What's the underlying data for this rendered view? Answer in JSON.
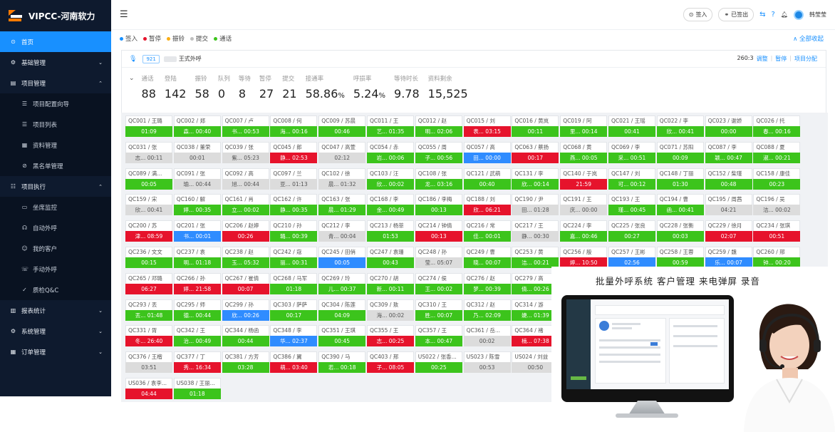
{
  "brand": "VIPCC-河南软力",
  "nav": [
    {
      "label": "首页",
      "icon": "home-icon",
      "active": true
    },
    {
      "label": "基础管理",
      "icon": "gear-icon",
      "chev": "⌄"
    },
    {
      "label": "项目管理",
      "icon": "briefcase-icon",
      "chev": "⌃"
    },
    {
      "label": "项目配置向导",
      "icon": "list-icon",
      "sub": true
    },
    {
      "label": "项目列表",
      "icon": "list-icon",
      "sub": true
    },
    {
      "label": "资料管理",
      "icon": "document-icon",
      "sub": true
    },
    {
      "label": "黑名单管理",
      "icon": "block-icon",
      "sub": true
    },
    {
      "label": "项目执行",
      "icon": "run-icon",
      "chev": "⌃"
    },
    {
      "label": "坐席监控",
      "icon": "monitor-icon",
      "sub": true
    },
    {
      "label": "自动外呼",
      "icon": "headset-icon",
      "sub": true
    },
    {
      "label": "我的客户",
      "icon": "users-icon",
      "sub": true
    },
    {
      "label": "手动外呼",
      "icon": "phone-icon",
      "sub": true
    },
    {
      "label": "质检Q&C",
      "icon": "check-icon",
      "sub": true
    },
    {
      "label": "报表统计",
      "icon": "chart-icon",
      "chev": "⌄"
    },
    {
      "label": "系统管理",
      "icon": "settings-icon",
      "chev": "⌄"
    },
    {
      "label": "订单管理",
      "icon": "order-icon",
      "chev": "⌄"
    }
  ],
  "topbar": {
    "signin": "签入",
    "signout": "已签出",
    "user": "韩莹莹"
  },
  "legend": [
    {
      "label": "签入",
      "color": "#1890ff"
    },
    {
      "label": "暂停",
      "color": "#e6132c"
    },
    {
      "label": "振铃",
      "color": "#faad14"
    },
    {
      "label": "提交",
      "color": "#bfbfbf"
    },
    {
      "label": "通话",
      "color": "#3cc41c"
    }
  ],
  "collapse_all": "∧ 全部收起",
  "panel": {
    "badge": "921",
    "project": "王式外呼",
    "code": "260:3",
    "actions": [
      "调整",
      "暂停",
      "项目分配"
    ],
    "stats": [
      {
        "label": "通话",
        "value": "88",
        "suffix": ""
      },
      {
        "label": "登陆",
        "value": "142",
        "suffix": ""
      },
      {
        "label": "振铃",
        "value": "58",
        "suffix": ""
      },
      {
        "label": "队列",
        "value": "0",
        "suffix": ""
      },
      {
        "label": "等待",
        "value": "8",
        "suffix": ""
      },
      {
        "label": "暂停",
        "value": "27",
        "suffix": ""
      },
      {
        "label": "提交",
        "value": "21",
        "suffix": ""
      },
      {
        "label": "接通率",
        "value": "58.86",
        "suffix": "%"
      },
      {
        "label": "呼损率",
        "value": "5.24",
        "suffix": "%"
      },
      {
        "label": "等待时长",
        "value": "9.78",
        "suffix": ""
      },
      {
        "label": "资料剩余",
        "value": "15,525",
        "suffix": ""
      }
    ]
  },
  "agents": [
    [
      "QC001 / 王璐",
      "01:09",
      "g"
    ],
    [
      "QC002 / 郑",
      "森... 00:40",
      "g"
    ],
    [
      "QC007 / 卢",
      "书... 00:53",
      "g"
    ],
    [
      "QC008 / 何",
      "海... 00:16",
      "g"
    ],
    [
      "QC009 / 苏晨",
      "00:46",
      "g"
    ],
    [
      "QC011 / 王",
      "艺... 01:35",
      "g"
    ],
    [
      "QC012 / 赵",
      "明... 02:06",
      "g"
    ],
    [
      "QC015 / 刘",
      "表... 03:15",
      "r"
    ],
    [
      "QC016 / 黄岚",
      "00:11",
      "g"
    ],
    [
      "QC019 / 阿",
      "里... 00:14",
      "g"
    ],
    [
      "QC021 / 王瑶",
      "00:41",
      "g"
    ],
    [
      "QC022 / 李",
      "欣... 00:41",
      "g"
    ],
    [
      "QC023 / 谢娇",
      "00:00",
      "g"
    ],
    [
      "QC026 / 托",
      "春... 00:16",
      "g"
    ],
    [
      "QC031 / 张",
      "志... 00:11",
      "y"
    ],
    [
      "QC038 / 董荣",
      "00:01",
      "y"
    ],
    [
      "QC039 / 张",
      "紫... 05:23",
      "y"
    ],
    [
      "QC045 / 郎",
      "静... 02:53",
      "r"
    ],
    [
      "QC047 / 高萱",
      "02:12",
      "y"
    ],
    [
      "QC054 / 赤",
      "岩... 00:06",
      "g"
    ],
    [
      "QC055 / 周",
      "子... 00:56",
      "g"
    ],
    [
      "QC057 / 高",
      "田... 00:00",
      "b"
    ],
    [
      "QC063 / 蔡扬",
      "00:17",
      "r"
    ],
    [
      "QC068 / 黄",
      "燕... 00:05",
      "g"
    ],
    [
      "QC069 / 李",
      "采... 00:51",
      "g"
    ],
    [
      "QC071 / 苏阳",
      "00:09",
      "g"
    ],
    [
      "QC087 / 李",
      "颖... 00:47",
      "g"
    ],
    [
      "QC088 / 夏",
      "淑... 00:21",
      "g"
    ],
    [
      "QC089 / 满...",
      "00:05",
      "g"
    ],
    [
      "QC091 / 张",
      "瑜... 00:44",
      "y"
    ],
    [
      "QC092 / 高",
      "旭... 00:44",
      "y"
    ],
    [
      "QC097 / 兰",
      "亚... 01:13",
      "y"
    ],
    [
      "QC102 / 徐",
      "晨... 01:32",
      "y"
    ],
    [
      "QC103 / 汪",
      "欣... 00:02",
      "g"
    ],
    [
      "QC108 / 张",
      "龙... 03:16",
      "g"
    ],
    [
      "QC121 / 武萌",
      "00:40",
      "g"
    ],
    [
      "QC131 / 李",
      "欣... 00:14",
      "g"
    ],
    [
      "QC140 / 于岚",
      "21:59",
      "r"
    ],
    [
      "QC147 / 刘",
      "可... 00:12",
      "g"
    ],
    [
      "QC148 / 丁丽",
      "01:30",
      "g"
    ],
    [
      "QC152 / 柴瑾",
      "00:48",
      "g"
    ],
    [
      "QC158 / 康佳",
      "00:23",
      "g"
    ],
    [
      "QC159 / 宋",
      "欣... 00:41",
      "y"
    ],
    [
      "QC160 / 解",
      "婷... 00:35",
      "g"
    ],
    [
      "QC161 / 肖",
      "立... 00:02",
      "g"
    ],
    [
      "QC162 / 许",
      "静... 00:35",
      "g"
    ],
    [
      "QC163 / 张",
      "晨... 01:29",
      "g"
    ],
    [
      "QC168 / 李",
      "金... 00:49",
      "g"
    ],
    [
      "QC186 / 李梅",
      "00:13",
      "g"
    ],
    [
      "QC188 / 刘",
      "欣... 06:21",
      "r"
    ],
    [
      "QC190 / 尹",
      "田... 01:28",
      "y"
    ],
    [
      "QC191 / 王",
      "庆... 00:00",
      "y"
    ],
    [
      "QC193 / 王",
      "瑾... 00:45",
      "g"
    ],
    [
      "QC194 / 曹",
      "函... 00:41",
      "g"
    ],
    [
      "QC195 / 周茜",
      "04:21",
      "y"
    ],
    [
      "QC196 / 吴",
      "洁... 00:02",
      "y"
    ],
    [
      "QC200 / 苏",
      "津... 08:59",
      "r"
    ],
    [
      "QC201 / 张",
      "书... 00:01",
      "b"
    ],
    [
      "QC206 / 赵婷",
      "00:26",
      "r"
    ],
    [
      "QC210 / 孙",
      "璐... 00:39",
      "g"
    ],
    [
      "QC212 / 李",
      "青... 00:04",
      "y"
    ],
    [
      "QC213 / 杨菲",
      "01:53",
      "g"
    ],
    [
      "QC214 / 钟倩",
      "00:13",
      "r"
    ],
    [
      "QC216 / 常",
      "佳... 00:01",
      "g"
    ],
    [
      "QC217 / 王",
      "静... 00:30",
      "y"
    ],
    [
      "QC224 / 李",
      "嘉... 00:46",
      "g"
    ],
    [
      "QC225 / 张良",
      "00:27",
      "g"
    ],
    [
      "QC228 / 张衡",
      "00:03",
      "g"
    ],
    [
      "QC229 / 徐月",
      "02:07",
      "r"
    ],
    [
      "QC234 / 张琪",
      "00:51",
      "r"
    ],
    [
      "QC236 / 文文",
      "00:15",
      "g"
    ],
    [
      "QC237 / 袁",
      "明... 01:18",
      "g"
    ],
    [
      "QC238 / 赵",
      "玉... 05:32",
      "g"
    ],
    [
      "QC242 / 寇",
      "丽... 00:31",
      "g"
    ],
    [
      "QC245 / 田俏",
      "00:05",
      "b"
    ],
    [
      "QC247 / 袁珊",
      "00:43",
      "g"
    ],
    [
      "QC248 / 孙",
      "莹... 05:07",
      "y"
    ],
    [
      "QC249 / 曹",
      "晓... 00:07",
      "g"
    ],
    [
      "QC253 / 黄",
      "洁... 00:21",
      "g"
    ],
    [
      "QC256 / 殷",
      "婷... 10:50",
      "r"
    ],
    [
      "QC257 / 王彬",
      "02:56",
      "b"
    ],
    [
      "QC258 / 王蓉",
      "00:59",
      "g"
    ],
    [
      "QC259 / 魏",
      "乐... 00:07",
      "b"
    ],
    [
      "QC260 / 邢",
      "钟... 00:20",
      "g"
    ],
    [
      "QC265 / 邓璐",
      "06:27",
      "r"
    ],
    [
      "QC266 / 孙",
      "婷... 21:58",
      "r"
    ],
    [
      "QC267 / 崔倩",
      "00:07",
      "r"
    ],
    [
      "QC268 / 马军",
      "01:18",
      "g"
    ],
    [
      "QC269 / 玲",
      "儿... 00:37",
      "g"
    ],
    [
      "QC270 / 胡",
      "新... 00:11",
      "g"
    ],
    [
      "QC274 / 侯",
      "王... 00:02",
      "g"
    ],
    [
      "QC276 / 赵",
      "梦... 00:39",
      "g"
    ],
    [
      "QC279 / 高",
      "倩... 00:26",
      "g"
    ],
    null,
    null,
    null,
    null,
    null,
    [
      "QC293 / 丟",
      "丟... 01:48",
      "g"
    ],
    [
      "QC295 / 师",
      "德... 00:44",
      "g"
    ],
    [
      "QC299 / 孙",
      "欣... 00:26",
      "b"
    ],
    [
      "QC303 / 萨萨",
      "00:17",
      "g"
    ],
    [
      "QC304 / 陈莲",
      "04:09",
      "g"
    ],
    [
      "QC309 / 敖",
      "海... 00:02",
      "y"
    ],
    [
      "QC310 / 王",
      "胜... 00:07",
      "g"
    ],
    [
      "QC312 / 赵",
      "乃... 02:09",
      "g"
    ],
    [
      "QC314 / 游",
      "婕... 01:39",
      "g"
    ],
    null,
    null,
    null,
    null,
    null,
    [
      "QC331 / 胥",
      "冬... 26:40",
      "r"
    ],
    [
      "QC342 / 王",
      "治... 00:49",
      "g"
    ],
    [
      "QC344 / 杨函",
      "00:44",
      "g"
    ],
    [
      "QC348 / 李",
      "华... 02:37",
      "b"
    ],
    [
      "QC351 / 王琪",
      "00:45",
      "g"
    ],
    [
      "QC355 / 王",
      "志... 00:25",
      "r"
    ],
    [
      "QC357 / 王",
      "本... 00:47",
      "g"
    ],
    [
      "QC361 / 岳...",
      "00:02",
      "y"
    ],
    [
      "QC364 / 褚",
      "楠... 07:38",
      "r"
    ],
    null,
    null,
    null,
    null,
    null,
    [
      "QC376 / 王楷",
      "03:51",
      "y"
    ],
    [
      "QC377 / 丁",
      "秀... 16:34",
      "r"
    ],
    [
      "QC381 / 方芳",
      "03:28",
      "g"
    ],
    [
      "QC386 / 翼",
      "萌... 03:40",
      "r"
    ],
    [
      "QC390 / 马",
      "若... 00:18",
      "g"
    ],
    [
      "QC403 / 邢",
      "子... 08:05",
      "r"
    ],
    [
      "US022 / 张香...",
      "00:25",
      "g"
    ],
    [
      "US023 / 陈雪",
      "00:53",
      "y"
    ],
    [
      "US024 / 刘益",
      "00:50",
      "y"
    ],
    null,
    null,
    null,
    null,
    null,
    [
      "US036 / 袁李...",
      "04:44",
      "r"
    ],
    [
      "US038 / 王丽...",
      "01:18",
      "g"
    ]
  ],
  "promo": {
    "title": "批量外呼系统   客户管理   来电弹屏   录音"
  }
}
